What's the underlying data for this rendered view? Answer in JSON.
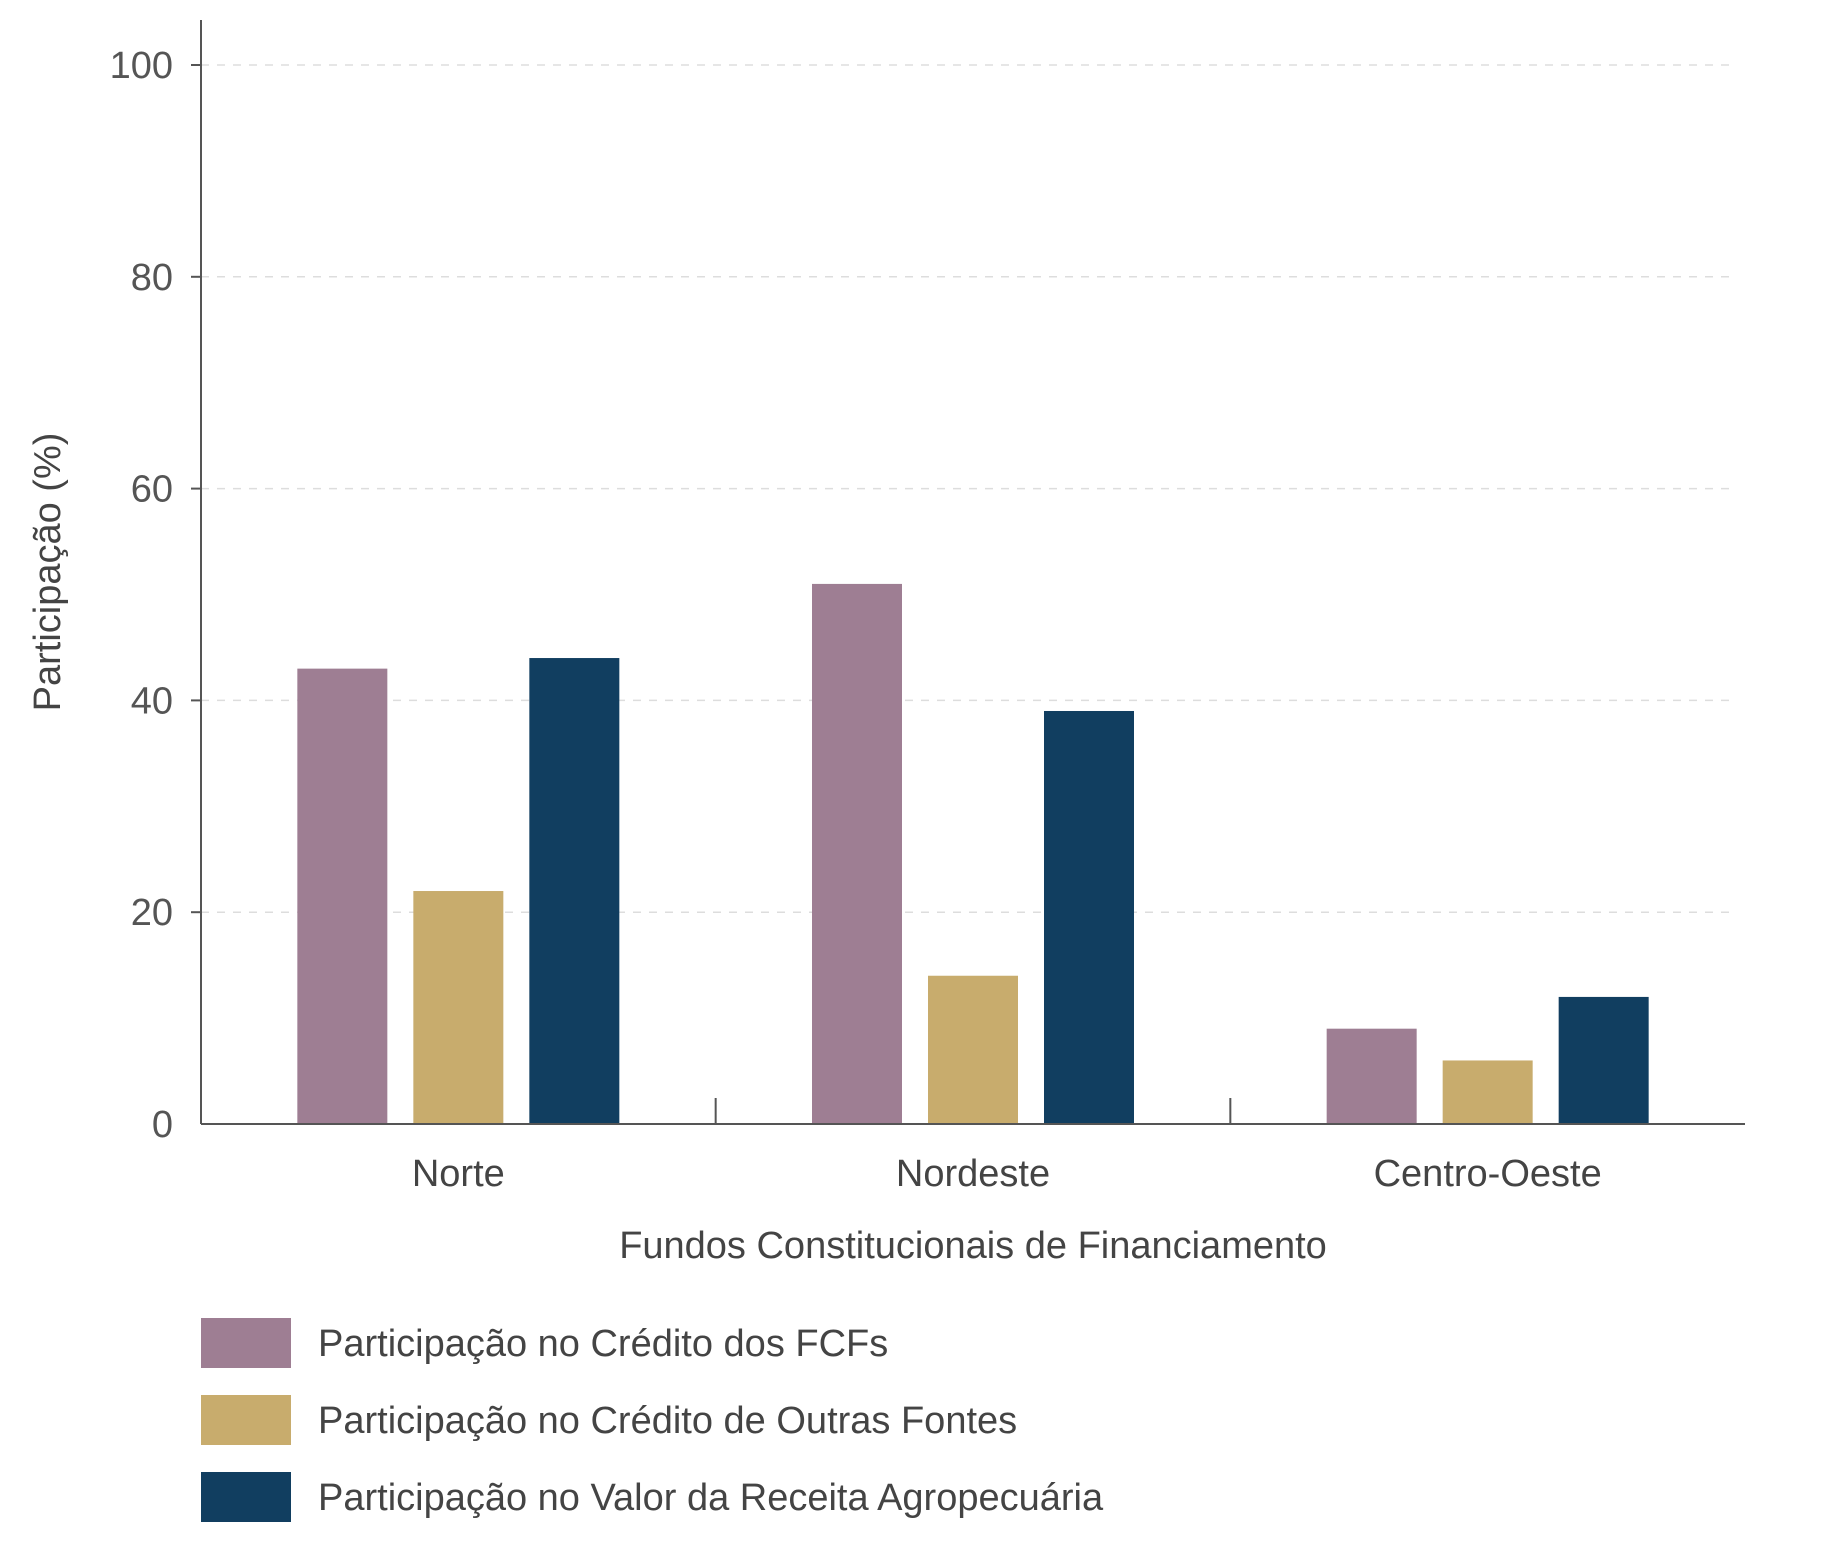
{
  "chart_data": {
    "type": "bar",
    "categories": [
      "Norte",
      "Nordeste",
      "Centro-Oeste"
    ],
    "series": [
      {
        "name": "Participação no Crédito dos FCFs",
        "color": "#9E7E93",
        "values": [
          43,
          51,
          9
        ]
      },
      {
        "name": "Participação no Crédito de Outras Fontes",
        "color": "#C8AC6D",
        "values": [
          22,
          14,
          6
        ]
      },
      {
        "name": "Participação no Valor da Receita Agropecuária",
        "color": "#113E60",
        "values": [
          44,
          39,
          12
        ]
      }
    ],
    "xlabel": "Fundos Constitucionais de Financiamento",
    "ylabel": "Participação (%)",
    "ylim": [
      0,
      100
    ],
    "yticks": [
      "0",
      "20",
      "40",
      "60",
      "80",
      "100"
    ],
    "ytick_values": [
      0,
      20,
      40,
      60,
      80,
      100
    ],
    "grid": "dashed-horizontal",
    "legend_position": "bottom-left"
  }
}
